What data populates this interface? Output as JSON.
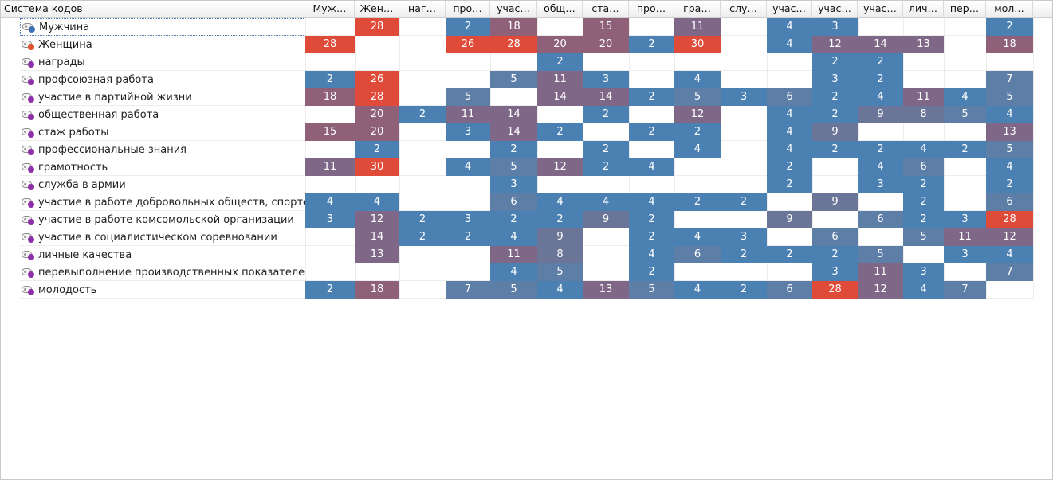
{
  "header": {
    "first_label": "Система кодов",
    "columns": [
      "Муж…",
      "Жен…",
      "наг…",
      "про…",
      "учас…",
      "общ…",
      "ста…",
      "про…",
      "гра…",
      "слу…",
      "учас…",
      "учас…",
      "учас…",
      "лич…",
      "пер…",
      "мол…"
    ]
  },
  "colors": {
    "blue": "#4b81b2",
    "muted_blue": "#5d7ea6",
    "slate": "#6a7597",
    "mauve": "#7f6887",
    "rose": "#8e6179",
    "red": "#df4b38",
    "dot_blue": "#3f6fb5",
    "dot_red": "#e0522f",
    "dot_purple": "#8e30a8"
  },
  "rows": [
    {
      "label": "Мужчина",
      "icon": "code-icon",
      "dot": "blue",
      "selected": true,
      "cells": [
        null,
        28,
        null,
        2,
        18,
        null,
        15,
        null,
        11,
        null,
        4,
        3,
        null,
        null,
        null,
        2
      ]
    },
    {
      "label": "Женщина",
      "icon": "code-icon",
      "dot": "red",
      "selected": false,
      "cells": [
        28,
        null,
        null,
        26,
        28,
        20,
        20,
        2,
        30,
        null,
        4,
        12,
        14,
        13,
        null,
        18
      ]
    },
    {
      "label": "награды",
      "icon": "code-icon",
      "dot": "purple",
      "selected": false,
      "cells": [
        null,
        null,
        null,
        null,
        null,
        2,
        null,
        null,
        null,
        null,
        null,
        2,
        2,
        null,
        null,
        null
      ]
    },
    {
      "label": "профсоюзная работа",
      "icon": "code-icon",
      "dot": "purple",
      "selected": false,
      "cells": [
        2,
        26,
        null,
        null,
        5,
        11,
        3,
        null,
        4,
        null,
        null,
        3,
        2,
        null,
        null,
        7
      ]
    },
    {
      "label": "участие в партийной жизни",
      "icon": "code-icon",
      "dot": "purple",
      "selected": false,
      "cells": [
        18,
        28,
        null,
        5,
        null,
        14,
        14,
        2,
        5,
        3,
        6,
        2,
        4,
        11,
        4,
        5
      ]
    },
    {
      "label": "общественная работа",
      "icon": "code-icon",
      "dot": "purple",
      "selected": false,
      "cells": [
        null,
        20,
        2,
        11,
        14,
        null,
        2,
        null,
        12,
        null,
        4,
        2,
        9,
        8,
        5,
        4
      ]
    },
    {
      "label": "стаж работы",
      "icon": "code-icon",
      "dot": "purple",
      "selected": false,
      "cells": [
        15,
        20,
        null,
        3,
        14,
        2,
        null,
        2,
        2,
        null,
        4,
        9,
        null,
        null,
        null,
        13
      ]
    },
    {
      "label": "профессиональные знания",
      "icon": "code-icon",
      "dot": "purple",
      "selected": false,
      "cells": [
        null,
        2,
        null,
        null,
        2,
        null,
        2,
        null,
        4,
        null,
        4,
        2,
        2,
        4,
        2,
        5
      ]
    },
    {
      "label": "грамотность",
      "icon": "code-icon",
      "dot": "purple",
      "selected": false,
      "cells": [
        11,
        30,
        null,
        4,
        5,
        12,
        2,
        4,
        null,
        null,
        2,
        null,
        4,
        6,
        null,
        4
      ]
    },
    {
      "label": "служба в армии",
      "icon": "code-icon",
      "dot": "purple",
      "selected": false,
      "cells": [
        null,
        null,
        null,
        null,
        3,
        null,
        null,
        null,
        null,
        null,
        2,
        null,
        3,
        2,
        null,
        2
      ]
    },
    {
      "label": "участие в работе добровольных обществ, спорте",
      "icon": "code-icon",
      "dot": "purple",
      "selected": false,
      "cells": [
        4,
        4,
        null,
        null,
        6,
        4,
        4,
        4,
        2,
        2,
        null,
        9,
        null,
        2,
        null,
        6
      ]
    },
    {
      "label": "участие в работе комсомольской организации",
      "icon": "code-icon",
      "dot": "purple",
      "selected": false,
      "cells": [
        3,
        12,
        2,
        3,
        2,
        2,
        9,
        2,
        null,
        null,
        9,
        null,
        6,
        2,
        3,
        28
      ]
    },
    {
      "label": "участие в социалистическом соревновании",
      "icon": "code-icon",
      "dot": "purple",
      "selected": false,
      "cells": [
        null,
        14,
        2,
        2,
        4,
        9,
        null,
        2,
        4,
        3,
        null,
        6,
        null,
        5,
        11,
        12
      ]
    },
    {
      "label": "личные качества",
      "icon": "code-icon",
      "dot": "purple",
      "selected": false,
      "cells": [
        null,
        13,
        null,
        null,
        11,
        8,
        null,
        4,
        6,
        2,
        2,
        2,
        5,
        null,
        3,
        4
      ]
    },
    {
      "label": "перевыполнение производственных показателей",
      "icon": "code-icon",
      "dot": "purple",
      "selected": false,
      "cells": [
        null,
        null,
        null,
        null,
        4,
        5,
        null,
        2,
        null,
        null,
        null,
        3,
        11,
        3,
        null,
        7
      ]
    },
    {
      "label": "молодость",
      "icon": "code-icon",
      "dot": "purple",
      "selected": false,
      "cells": [
        2,
        18,
        null,
        7,
        5,
        4,
        13,
        5,
        4,
        2,
        6,
        28,
        12,
        4,
        7,
        null
      ]
    }
  ]
}
